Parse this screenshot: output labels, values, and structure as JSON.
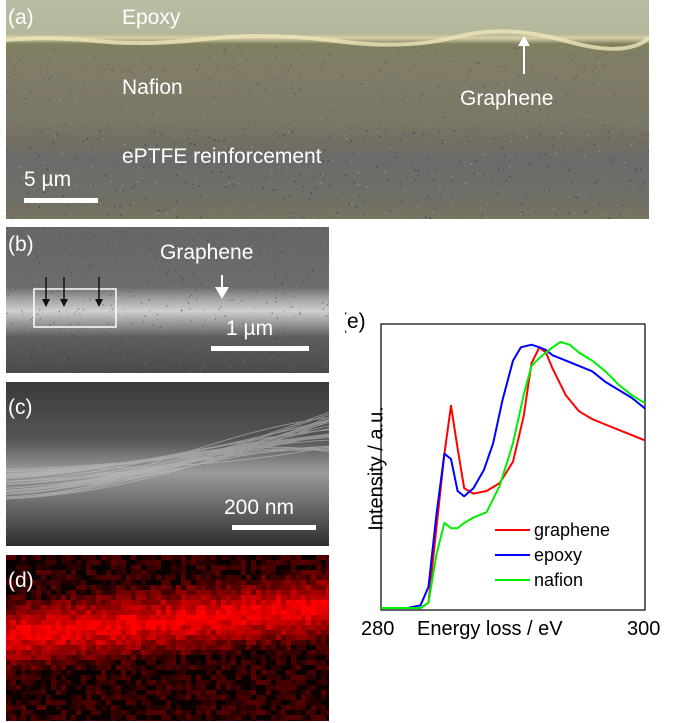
{
  "panels": {
    "a": {
      "label": "(a)",
      "layers": [
        "Epoxy",
        "Nafion",
        "ePTFE reinforcement"
      ],
      "arrow_label": "Graphene",
      "scale_bar": "5 µm"
    },
    "b": {
      "label": "(b)",
      "arrow_label": "Graphene",
      "scale_bar": "1 µm"
    },
    "c": {
      "label": "(c)",
      "scale_bar": "200 nm"
    },
    "d": {
      "label": "(d)"
    },
    "e": {
      "label": "(e)"
    }
  },
  "chart_data": {
    "type": "line",
    "xlabel": "Energy loss / eV",
    "ylabel": "Intensity / a.u.",
    "xlim": [
      280,
      300
    ],
    "x_ticks": [
      "280",
      "300"
    ],
    "legend_position": "bottom-right",
    "grid": false,
    "series": [
      {
        "name": "graphene",
        "color": "#ff0000",
        "x": [
          280,
          282,
          283,
          283.6,
          284.2,
          284.8,
          285.3,
          285.8,
          286.3,
          287,
          288,
          289,
          290,
          290.8,
          291.4,
          292,
          292.5,
          293,
          294,
          295,
          296,
          297,
          298,
          299,
          300
        ],
        "y": [
          0,
          0,
          0,
          0.02,
          0.3,
          0.58,
          0.76,
          0.6,
          0.45,
          0.43,
          0.44,
          0.47,
          0.55,
          0.72,
          0.92,
          0.98,
          0.96,
          0.9,
          0.8,
          0.74,
          0.71,
          0.69,
          0.67,
          0.65,
          0.63
        ]
      },
      {
        "name": "epoxy",
        "color": "#0000ff",
        "x": [
          280,
          282,
          283,
          283.6,
          284.2,
          284.8,
          285.3,
          285.8,
          286.3,
          287,
          287.8,
          288.5,
          289.2,
          290,
          290.6,
          291.4,
          292,
          292.5,
          293,
          294,
          295,
          296,
          297,
          298,
          299,
          300
        ],
        "y": [
          0,
          0,
          0.01,
          0.08,
          0.35,
          0.58,
          0.56,
          0.44,
          0.42,
          0.45,
          0.52,
          0.62,
          0.78,
          0.93,
          0.98,
          0.99,
          0.98,
          0.97,
          0.95,
          0.93,
          0.91,
          0.89,
          0.85,
          0.82,
          0.79,
          0.75
        ]
      },
      {
        "name": "nafion",
        "color": "#00ee00",
        "x": [
          280,
          282,
          283,
          283.6,
          284.2,
          284.8,
          285.3,
          285.8,
          286.3,
          287,
          288,
          289,
          290,
          290.8,
          291.4,
          292,
          292.5,
          293,
          293.6,
          294.3,
          295,
          296,
          297,
          298,
          299,
          300
        ],
        "y": [
          0,
          0,
          0,
          0.02,
          0.2,
          0.32,
          0.3,
          0.3,
          0.32,
          0.34,
          0.36,
          0.46,
          0.62,
          0.8,
          0.91,
          0.94,
          0.96,
          0.98,
          1.0,
          0.99,
          0.96,
          0.93,
          0.89,
          0.84,
          0.8,
          0.77
        ]
      }
    ]
  }
}
